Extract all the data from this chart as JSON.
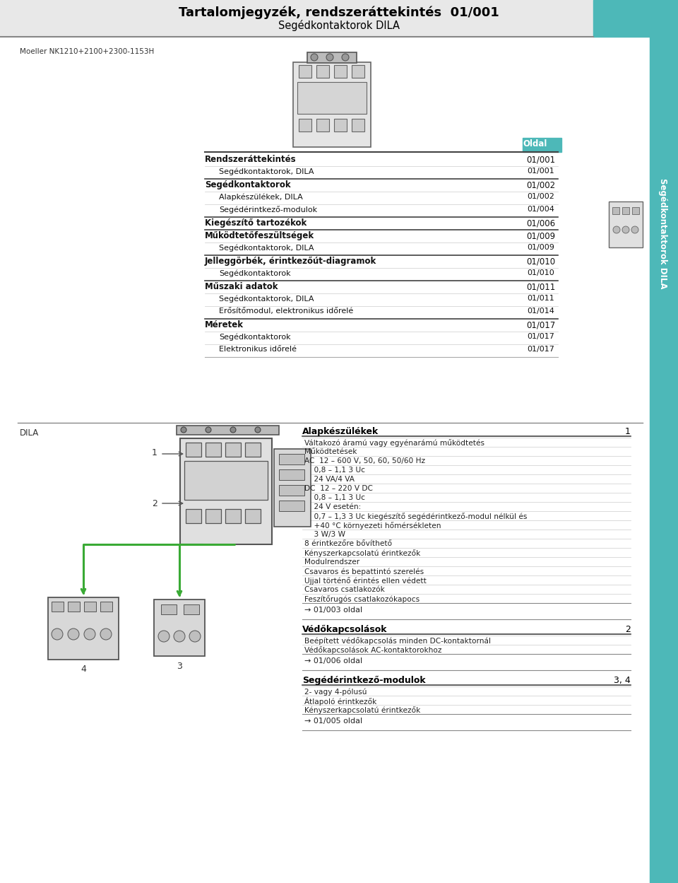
{
  "title_line1": "Tartalomjegyzék, rendszeráttekintés  01/001",
  "title_line2": "Segédkontaktorok DILA",
  "header_color": "#4db8b8",
  "sidebar_color": "#4db8b8",
  "sidebar_text": "Segédkontaktorok DILA",
  "moeller_ref": "Moeller NK1210+2100+2300-1153H",
  "toc_header": "Oldal",
  "toc_entries": [
    {
      "label": "Rendszeráttekintés",
      "page": "01/001",
      "bold": true,
      "indent": 0
    },
    {
      "label": "Segédkontaktorok, DILA",
      "page": "01/001",
      "bold": false,
      "indent": 1
    },
    {
      "label": "Segédkontaktorok",
      "page": "01/002",
      "bold": true,
      "indent": 0
    },
    {
      "label": "Alapkészülékek, DILA",
      "page": "01/002",
      "bold": false,
      "indent": 1
    },
    {
      "label": "Segédérintkező-modulok",
      "page": "01/004",
      "bold": false,
      "indent": 1
    },
    {
      "label": "Kiegészítő tartozékok",
      "page": "01/006",
      "bold": true,
      "indent": 0
    },
    {
      "label": "Működtetőfeszültségek",
      "page": "01/009",
      "bold": true,
      "indent": 0
    },
    {
      "label": "Segédkontaktorok, DILA",
      "page": "01/009",
      "bold": false,
      "indent": 1
    },
    {
      "label": "Jelleggörbék, érintkezőút-diagramok",
      "page": "01/010",
      "bold": true,
      "indent": 0
    },
    {
      "label": "Segédkontaktorok",
      "page": "01/010",
      "bold": false,
      "indent": 1
    },
    {
      "label": "Műszaki adatok",
      "page": "01/011",
      "bold": true,
      "indent": 0
    },
    {
      "label": "Segédkontaktorok, DILA",
      "page": "01/011",
      "bold": false,
      "indent": 1
    },
    {
      "label": "Erősítőmodul, elektronikus időrelé",
      "page": "01/014",
      "bold": false,
      "indent": 1
    },
    {
      "label": "Méretek",
      "page": "01/017",
      "bold": true,
      "indent": 0
    },
    {
      "label": "Segédkontaktorok",
      "page": "01/017",
      "bold": false,
      "indent": 1
    },
    {
      "label": "Elektronikus időrelé",
      "page": "01/017",
      "bold": false,
      "indent": 1
    }
  ],
  "section2_title": "DILA",
  "alapkeszulek_header": "Alapkészülékek",
  "alapkeszulek_num": "1",
  "alapkeszulek_entries": [
    "Váltakozó áramú vagy egyénarámú működtetés",
    "Működtetések",
    "AC  12 – 600 V, 50, 60, 50/60 Hz",
    "    0,8 – 1,1 3 Uc",
    "    24 VA/4 VA",
    "DC  12 – 220 V DC",
    "    0,8 – 1,1 3 Uc",
    "    24 V esetén:",
    "    0,7 – 1,3 3 Uc kiegészítő segédérintkező-modul nélkül és",
    "    +40 °C környezeti hőmérsékleten",
    "    3 W/3 W",
    "8 érintkezőre bővíthető",
    "Kényszerkapcsolatú érintkezők",
    "Modulrendszer",
    "Csavaros és bepattintó szerelés",
    "Ujjal történő érintés ellen védett",
    "Csavaros csatlakozók",
    "Feszítőrugós csatlakozókapocs"
  ],
  "ref1": "→ 01/003 oldal",
  "vedokapcsolasok_header": "Védőkapcsolások",
  "vedokapcsolasok_num": "2",
  "vedokapcsolasok_entries": [
    "Beépített védőkapcsolás minden DC-kontaktornál",
    "Védőkapcsolások AC-kontaktorokhoz"
  ],
  "ref2": "→ 01/006 oldal",
  "segederintkezo_header": "Segédérintkező-modulok",
  "segederintkezo_num": "3, 4",
  "segederintkezo_entries": [
    "2- vagy 4-pólusú",
    "Átlapoló érintkezők",
    "Kényszerkapcsolatú érintkezők"
  ],
  "ref3": "→ 01/005 oldal"
}
